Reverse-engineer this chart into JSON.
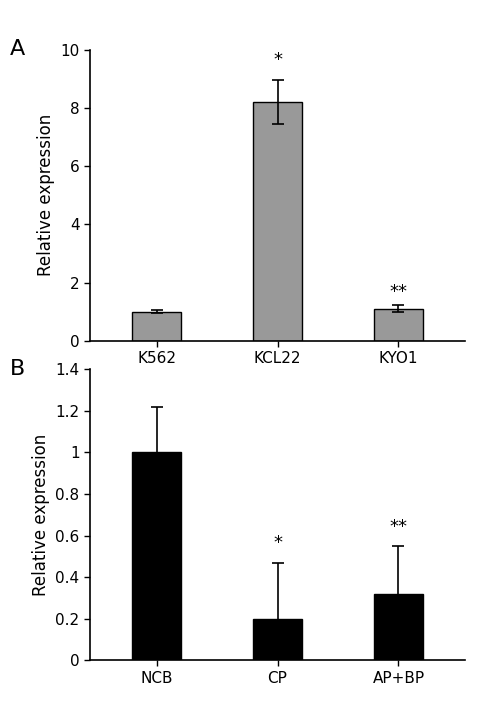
{
  "panel_A": {
    "categories": [
      "K562",
      "KCL22",
      "KYO1"
    ],
    "values": [
      1.0,
      8.2,
      1.1
    ],
    "errors": [
      0.05,
      0.75,
      0.12
    ],
    "bar_color": "#999999",
    "edge_color": "#000000",
    "ylim": [
      0,
      10
    ],
    "yticks": [
      0,
      2,
      4,
      6,
      8,
      10
    ],
    "ylabel": "Relative expression",
    "label": "A",
    "significance": [
      "",
      "*",
      "**"
    ],
    "sig_fontsize": 13,
    "sig_offsets": [
      0,
      0.4,
      0.15
    ]
  },
  "panel_B": {
    "categories": [
      "NCB",
      "CP",
      "AP+BP"
    ],
    "values": [
      1.0,
      0.2,
      0.32
    ],
    "errors": [
      0.22,
      0.27,
      0.23
    ],
    "bar_color": "#000000",
    "edge_color": "#000000",
    "ylim": [
      0,
      1.4
    ],
    "yticks": [
      0,
      0.2,
      0.4,
      0.6,
      0.8,
      1.0,
      1.2,
      1.4
    ],
    "ylabel": "Relative expression",
    "label": "B",
    "significance": [
      "",
      "*",
      "**"
    ],
    "sig_fontsize": 13,
    "sig_offsets": [
      0,
      0.05,
      0.05
    ]
  },
  "bar_width": 0.4,
  "tick_fontsize": 11,
  "label_fontsize": 12,
  "panel_label_fontsize": 16,
  "fig_width": 5.0,
  "fig_height": 7.1
}
